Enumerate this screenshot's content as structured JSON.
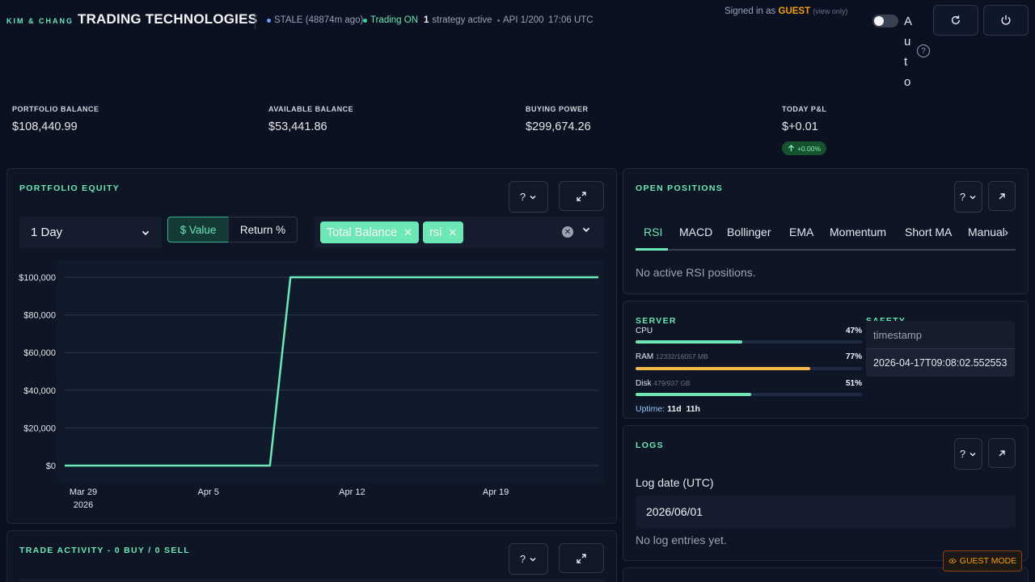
{
  "brand": {
    "small": "KIM & CHANG",
    "title": "TRADING TECHNOLOGIES"
  },
  "status": {
    "stale": "STALE (48874m ago)",
    "trading": "Trading ON",
    "strategy_count": "1",
    "strategy_text": "strategy active",
    "api": "API 1/200",
    "time": "17:06 UTC"
  },
  "user": {
    "signed_prefix": "Signed in as",
    "name": "GUEST",
    "mode": "(view only)"
  },
  "auto": {
    "label": "Auto",
    "help": "?"
  },
  "stats": [
    {
      "label": "PORTFOLIO BALANCE",
      "value": "$108,440.99"
    },
    {
      "label": "AVAILABLE BALANCE",
      "value": "$53,441.86"
    },
    {
      "label": "BUYING POWER",
      "value": "$299,674.26"
    },
    {
      "label": "TODAY P&L",
      "value": "$+0.01",
      "badge": "+0.00%"
    }
  ],
  "equity": {
    "title": "PORTFOLIO EQUITY",
    "range": "1 Day",
    "mode_active": "$ Value",
    "mode_inactive": "Return %",
    "chips": [
      "Total Balance",
      "rsi"
    ],
    "help": "?"
  },
  "chart_data": {
    "type": "line",
    "series": [
      {
        "values": [
          {
            "x": "2026-03-29",
            "y": 0
          },
          {
            "x": "2026-04-08",
            "y": 0
          },
          {
            "x": "2026-04-09",
            "y": 100000
          },
          {
            "x": "2026-04-24",
            "y": 100000
          }
        ]
      }
    ],
    "y_ticks": [
      "$100,000",
      "$80,000",
      "$60,000",
      "$40,000",
      "$20,000",
      "$0"
    ],
    "x_ticks": [
      "Mar 29",
      "Apr 5",
      "Apr 12",
      "Apr 19"
    ],
    "x_year": "2026",
    "ylim": [
      0,
      100000
    ],
    "grid": true,
    "colors": {
      "line": "#6ee7b7",
      "grid": "#2a3550"
    }
  },
  "positions": {
    "title": "OPEN POSITIONS",
    "help": "?",
    "tabs": [
      "RSI",
      "MACD",
      "Bollinger",
      "EMA",
      "Momentum",
      "Short MA",
      "Manual"
    ],
    "empty": "No active RSI positions."
  },
  "server": {
    "title": "SERVER",
    "safety_title": "SAFETY",
    "cpu": {
      "label": "CPU",
      "sub": "",
      "pct": "47%",
      "fraction": 0.47,
      "color": "#6ee7b7"
    },
    "ram": {
      "label": "RAM",
      "sub": "12332/16057 MB",
      "pct": "77%",
      "fraction": 0.77,
      "color": "#f6b94a"
    },
    "disk": {
      "label": "Disk",
      "sub": "479/937 GB",
      "pct": "51%",
      "fraction": 0.51,
      "color": "#6ee7b7"
    },
    "uptime_label": "Uptime:",
    "uptime_value": "11d  11h"
  },
  "tooltip": {
    "head": "timestamp",
    "value": "2026-04-17T09:08:02.552553"
  },
  "logs": {
    "title": "LOGS",
    "help": "?",
    "date_label": "Log date (UTC)",
    "date_value": "2026/06/01",
    "empty": "No log entries yet."
  },
  "trades": {
    "title": "TRADE ACTIVITY - 0 BUY / 0 SELL",
    "help": "?"
  },
  "guest_badge": "GUEST MODE"
}
